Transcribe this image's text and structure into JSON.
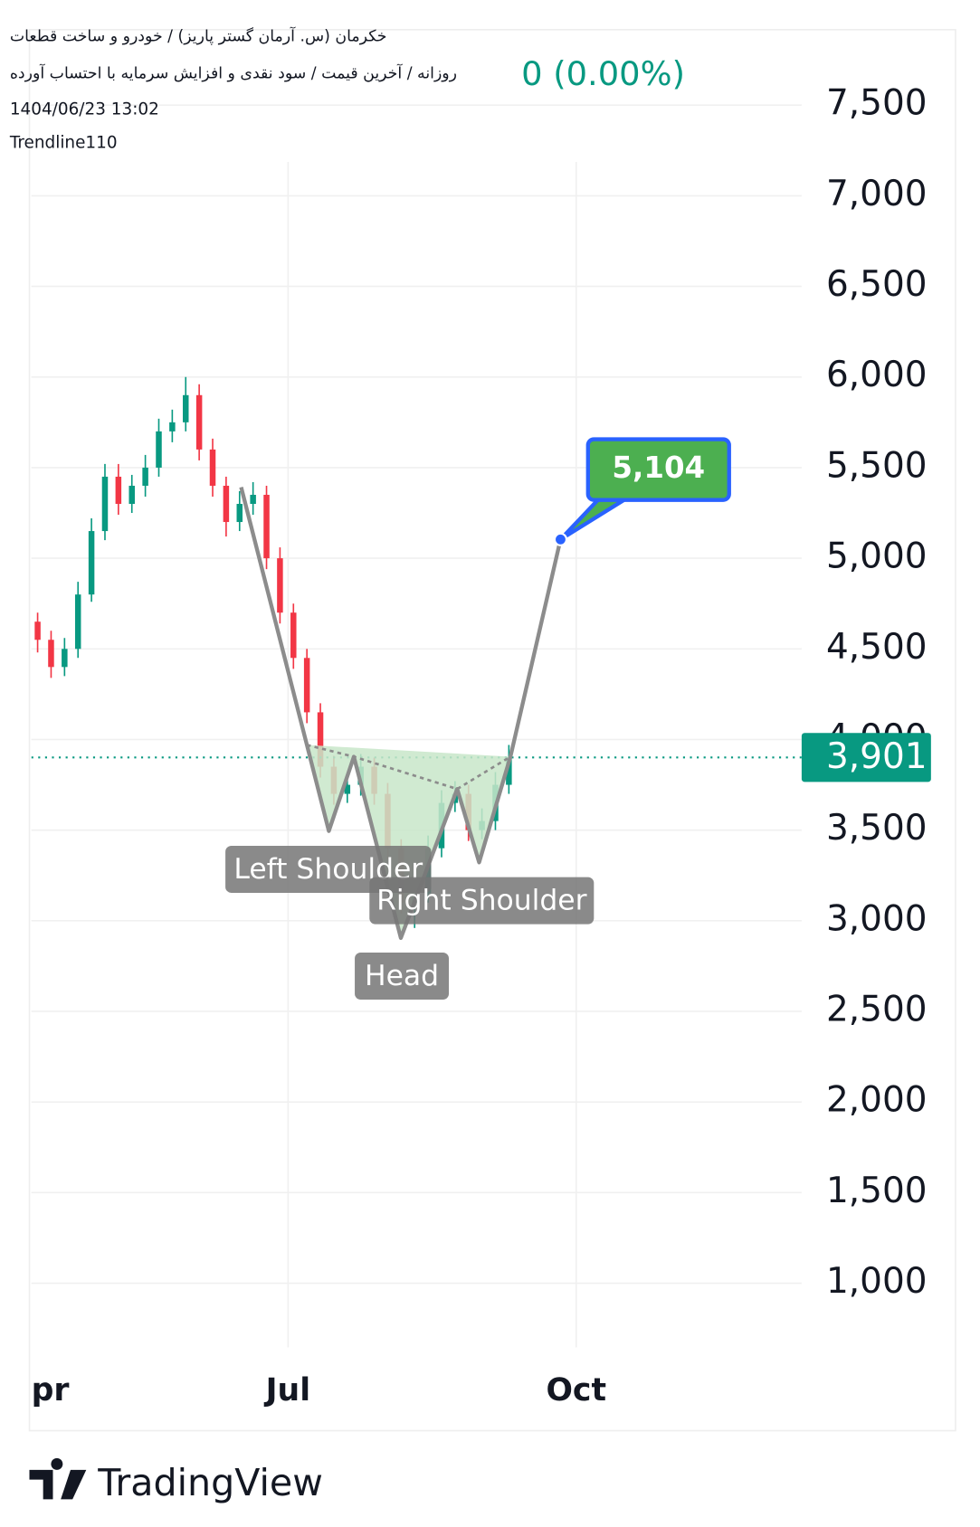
{
  "header": {
    "line1": "خکرمان (س. آرمان گستر پاریز) / خودرو و ساخت قطعات",
    "line2": "روزانه / آخرین قیمت / سود نقدی و افزایش سرمایه با احتساب آورده",
    "change": "0 (0.00%)",
    "timestamp": "1404/06/23 13:02",
    "author": "Trendline110"
  },
  "chart_data": {
    "type": "candlestick",
    "up_color": "#089981",
    "down_color": "#f23645",
    "xlim": [
      0,
      246
    ],
    "xticks": [
      {
        "value": -9,
        "label": "pr"
      },
      {
        "value": 82,
        "label": "Jul"
      },
      {
        "value": 174,
        "label": "Oct"
      }
    ],
    "ylim": [
      650,
      7750
    ],
    "yticks": [
      {
        "value": 7500,
        "label": "7,500"
      },
      {
        "value": 7000,
        "label": "7,000"
      },
      {
        "value": 6500,
        "label": "6,500"
      },
      {
        "value": 6000,
        "label": "6,000"
      },
      {
        "value": 5500,
        "label": "5,500"
      },
      {
        "value": 5000,
        "label": "5,000"
      },
      {
        "value": 4500,
        "label": "4,500"
      },
      {
        "value": 4000,
        "label": "4,000"
      },
      {
        "value": 3500,
        "label": "3,500"
      },
      {
        "value": 3000,
        "label": "3,000"
      },
      {
        "value": 2500,
        "label": "2,500"
      },
      {
        "value": 2000,
        "label": "2,000"
      },
      {
        "value": 1500,
        "label": "1,500"
      },
      {
        "value": 1000,
        "label": "1,000"
      }
    ],
    "grid": true,
    "last_price": {
      "value": 3901,
      "label": "3,901",
      "color": "#089981"
    },
    "candles": [
      {
        "x": 2,
        "open": 4650,
        "high": 4700,
        "low": 4480,
        "close": 4550
      },
      {
        "x": 6.3,
        "open": 4550,
        "high": 4600,
        "low": 4340,
        "close": 4400
      },
      {
        "x": 10.6,
        "open": 4400,
        "high": 4560,
        "low": 4350,
        "close": 4500
      },
      {
        "x": 14.9,
        "open": 4500,
        "high": 4870,
        "low": 4450,
        "close": 4800
      },
      {
        "x": 19.2,
        "open": 4800,
        "high": 5220,
        "low": 4760,
        "close": 5150
      },
      {
        "x": 23.5,
        "open": 5150,
        "high": 5520,
        "low": 5100,
        "close": 5450
      },
      {
        "x": 27.8,
        "open": 5450,
        "high": 5520,
        "low": 5240,
        "close": 5300
      },
      {
        "x": 32.1,
        "open": 5300,
        "high": 5460,
        "low": 5250,
        "close": 5400
      },
      {
        "x": 36.4,
        "open": 5400,
        "high": 5570,
        "low": 5340,
        "close": 5500
      },
      {
        "x": 40.7,
        "open": 5500,
        "high": 5770,
        "low": 5450,
        "close": 5700
      },
      {
        "x": 45,
        "open": 5700,
        "high": 5820,
        "low": 5640,
        "close": 5750
      },
      {
        "x": 49.3,
        "open": 5750,
        "high": 6000,
        "low": 5700,
        "close": 5900
      },
      {
        "x": 53.6,
        "open": 5900,
        "high": 5960,
        "low": 5540,
        "close": 5600
      },
      {
        "x": 57.9,
        "open": 5600,
        "high": 5660,
        "low": 5340,
        "close": 5400
      },
      {
        "x": 62.2,
        "open": 5400,
        "high": 5450,
        "low": 5120,
        "close": 5200
      },
      {
        "x": 66.5,
        "open": 5200,
        "high": 5370,
        "low": 5150,
        "close": 5300
      },
      {
        "x": 70.8,
        "open": 5300,
        "high": 5420,
        "low": 5240,
        "close": 5350
      },
      {
        "x": 75.1,
        "open": 5350,
        "high": 5400,
        "low": 4940,
        "close": 5000
      },
      {
        "x": 79.4,
        "open": 5000,
        "high": 5060,
        "low": 4640,
        "close": 4700
      },
      {
        "x": 83.7,
        "open": 4700,
        "high": 4750,
        "low": 4390,
        "close": 4450
      },
      {
        "x": 88,
        "open": 4450,
        "high": 4500,
        "low": 4090,
        "close": 4150
      },
      {
        "x": 92.3,
        "open": 4150,
        "high": 4200,
        "low": 3790,
        "close": 3850
      },
      {
        "x": 96.6,
        "open": 3850,
        "high": 3910,
        "low": 3640,
        "close": 3700
      },
      {
        "x": 100.9,
        "open": 3700,
        "high": 3820,
        "low": 3650,
        "close": 3750
      },
      {
        "x": 105.2,
        "open": 3750,
        "high": 3920,
        "low": 3690,
        "close": 3850
      },
      {
        "x": 109.5,
        "open": 3850,
        "high": 3900,
        "low": 3640,
        "close": 3700
      },
      {
        "x": 113.8,
        "open": 3700,
        "high": 3760,
        "low": 3340,
        "close": 3400
      },
      {
        "x": 118.1,
        "open": 3400,
        "high": 3450,
        "low": 3040,
        "close": 3100
      },
      {
        "x": 122.4,
        "open": 3100,
        "high": 3220,
        "low": 2960,
        "close": 3150
      },
      {
        "x": 126.7,
        "open": 3150,
        "high": 3470,
        "low": 3100,
        "close": 3400
      },
      {
        "x": 131,
        "open": 3400,
        "high": 3720,
        "low": 3350,
        "close": 3650
      },
      {
        "x": 135.3,
        "open": 3650,
        "high": 3770,
        "low": 3600,
        "close": 3700
      },
      {
        "x": 139.6,
        "open": 3700,
        "high": 3750,
        "low": 3440,
        "close": 3500
      },
      {
        "x": 143.9,
        "open": 3500,
        "high": 3620,
        "low": 3450,
        "close": 3550
      },
      {
        "x": 148.2,
        "open": 3550,
        "high": 3820,
        "low": 3500,
        "close": 3750
      },
      {
        "x": 152.5,
        "open": 3750,
        "high": 3970,
        "low": 3700,
        "close": 3901
      }
    ],
    "pattern": {
      "x": [
        67,
        88,
        95,
        103,
        118,
        136,
        143,
        153,
        169
      ],
      "values": [
        5392,
        3970,
        3495,
        3905,
        2905,
        3727,
        3322,
        3905,
        5104
      ],
      "labels": [
        "Left Shoulder",
        "Head",
        "Right Shoulder"
      ],
      "target_label": "5,104",
      "line_color": "#8c8c8c",
      "fill_color": "#c8e6c9",
      "target_color": "#4caf50"
    }
  },
  "brand": "TradingView"
}
